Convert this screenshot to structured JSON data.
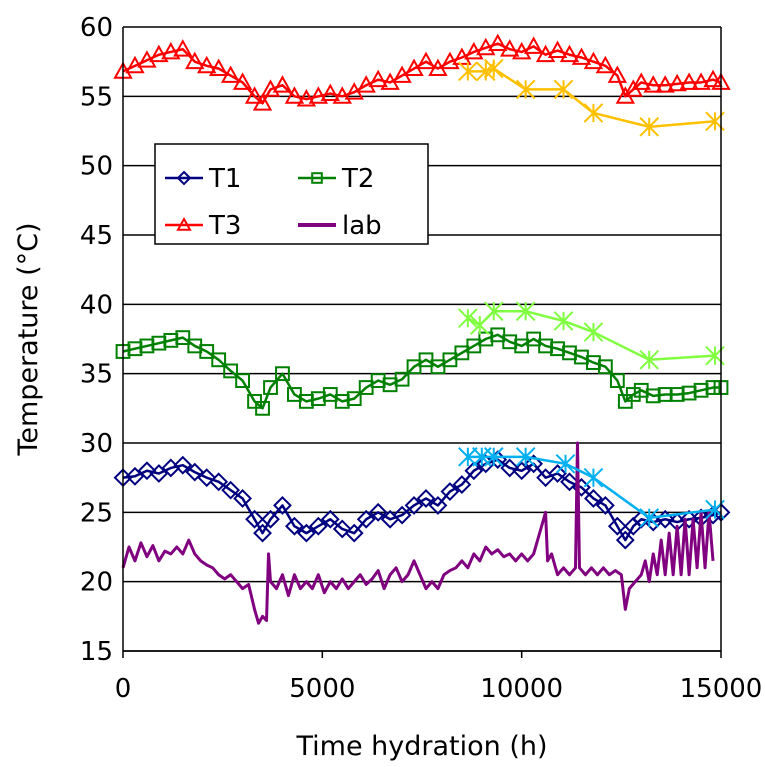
{
  "chart_data": {
    "type": "line",
    "title": "",
    "xlabel": "Time hydration (h)",
    "ylabel": "Temperature  (°C)",
    "xlim": [
      0,
      15000
    ],
    "ylim": [
      15,
      60
    ],
    "x_ticks": [
      0,
      5000,
      10000,
      15000
    ],
    "x_tick_labels": [
      "0",
      "5000",
      "10000",
      "15000"
    ],
    "y_ticks": [
      15,
      20,
      25,
      30,
      35,
      40,
      45,
      50,
      55,
      60
    ],
    "y_tick_labels": [
      "15",
      "20",
      "25",
      "30",
      "35",
      "40",
      "45",
      "50",
      "55",
      "60"
    ],
    "grid": "horizontal",
    "legend_position": "upper-left inside plot",
    "series": [
      {
        "name": "T1",
        "color": "#000080",
        "marker": "diamond",
        "x": [
          0,
          300,
          600,
          900,
          1200,
          1500,
          1800,
          2100,
          2400,
          2700,
          3000,
          3300,
          3500,
          3700,
          4000,
          4300,
          4600,
          4900,
          5200,
          5500,
          5800,
          6100,
          6400,
          6700,
          7000,
          7300,
          7600,
          7900,
          8200,
          8500,
          8800,
          9100,
          9400,
          9700,
          10000,
          10300,
          10600,
          10900,
          11200,
          11500,
          11800,
          12100,
          12400,
          12600,
          12800,
          13000,
          13300,
          13600,
          13900,
          14200,
          14500,
          14800,
          15000
        ],
        "y": [
          27.5,
          27.6,
          28.0,
          27.8,
          28.2,
          28.4,
          27.9,
          27.5,
          27.2,
          26.6,
          26.0,
          24.5,
          23.5,
          24.5,
          25.5,
          24.0,
          23.5,
          24.0,
          24.5,
          23.8,
          23.5,
          24.5,
          25.0,
          24.5,
          24.8,
          25.5,
          26.0,
          25.5,
          26.5,
          27.0,
          28.0,
          28.5,
          28.8,
          28.2,
          28.0,
          28.5,
          27.5,
          27.8,
          27.2,
          26.8,
          26.0,
          25.5,
          24.0,
          23.0,
          24.0,
          24.5,
          24.3,
          24.5,
          24.3,
          24.5,
          24.6,
          24.8,
          25.0
        ]
      },
      {
        "name": "T2",
        "color": "#008000",
        "marker": "square",
        "x": [
          0,
          300,
          600,
          900,
          1200,
          1500,
          1800,
          2100,
          2400,
          2700,
          3000,
          3300,
          3500,
          3700,
          4000,
          4300,
          4600,
          4900,
          5200,
          5500,
          5800,
          6100,
          6400,
          6700,
          7000,
          7300,
          7600,
          7900,
          8200,
          8500,
          8800,
          9100,
          9400,
          9700,
          10000,
          10300,
          10600,
          10900,
          11200,
          11500,
          11800,
          12100,
          12400,
          12600,
          12800,
          13000,
          13300,
          13600,
          13900,
          14200,
          14500,
          14800,
          15000
        ],
        "y": [
          36.6,
          36.8,
          37.0,
          37.2,
          37.4,
          37.6,
          37.0,
          36.6,
          36.0,
          35.2,
          34.5,
          33.0,
          32.5,
          34.0,
          35.0,
          33.5,
          33.0,
          33.2,
          33.5,
          33.0,
          33.2,
          34.0,
          34.5,
          34.2,
          34.6,
          35.5,
          36.0,
          35.5,
          36.0,
          36.5,
          37.0,
          37.5,
          37.8,
          37.3,
          37.0,
          37.5,
          37.0,
          36.8,
          36.5,
          36.2,
          35.8,
          35.5,
          34.5,
          33.0,
          33.5,
          33.8,
          33.4,
          33.5,
          33.5,
          33.6,
          33.8,
          34.0,
          34.0
        ]
      },
      {
        "name": "T3",
        "color": "#ff0000",
        "marker": "triangle",
        "x": [
          0,
          300,
          600,
          900,
          1200,
          1500,
          1800,
          2100,
          2400,
          2700,
          3000,
          3300,
          3500,
          3700,
          4000,
          4300,
          4600,
          4900,
          5200,
          5500,
          5800,
          6100,
          6400,
          6700,
          7000,
          7300,
          7600,
          7900,
          8200,
          8500,
          8800,
          9100,
          9400,
          9700,
          10000,
          10300,
          10600,
          10900,
          11200,
          11500,
          11800,
          12100,
          12400,
          12600,
          12800,
          13000,
          13300,
          13600,
          13900,
          14200,
          14500,
          14800,
          15000
        ],
        "y": [
          56.8,
          57.2,
          57.6,
          58.0,
          58.2,
          58.4,
          57.5,
          57.2,
          57.0,
          56.5,
          56.0,
          55.0,
          54.5,
          55.5,
          55.8,
          55.0,
          54.8,
          55.0,
          55.2,
          55.0,
          55.3,
          55.8,
          56.2,
          56.0,
          56.5,
          57.0,
          57.5,
          57.0,
          57.5,
          57.8,
          58.2,
          58.5,
          58.8,
          58.4,
          58.2,
          58.6,
          58.0,
          58.3,
          58.0,
          57.8,
          57.5,
          57.2,
          56.5,
          55.0,
          55.5,
          56.0,
          55.8,
          55.8,
          55.9,
          56.0,
          56.0,
          56.2,
          56.0
        ]
      },
      {
        "name": "lab",
        "color": "#800080",
        "marker": "none",
        "x": [
          0,
          150,
          300,
          450,
          600,
          750,
          900,
          1050,
          1200,
          1350,
          1500,
          1650,
          1800,
          1950,
          2100,
          2250,
          2400,
          2550,
          2700,
          2850,
          3000,
          3150,
          3300,
          3400,
          3500,
          3600,
          3650,
          3700,
          3850,
          4000,
          4150,
          4300,
          4450,
          4600,
          4750,
          4900,
          5050,
          5200,
          5350,
          5500,
          5650,
          5800,
          5950,
          6100,
          6250,
          6400,
          6550,
          6700,
          6850,
          7000,
          7150,
          7300,
          7450,
          7600,
          7750,
          7900,
          8050,
          8200,
          8350,
          8500,
          8650,
          8800,
          8950,
          9100,
          9250,
          9400,
          9550,
          9700,
          9850,
          10000,
          10150,
          10300,
          10450,
          10600,
          10650,
          10750,
          10900,
          11050,
          11200,
          11350,
          11400,
          11450,
          11600,
          11750,
          11900,
          12050,
          12200,
          12350,
          12500,
          12600,
          12700,
          12850,
          13000,
          13100,
          13200,
          13300,
          13400,
          13500,
          13600,
          13700,
          13800,
          13900,
          14000,
          14100,
          14200,
          14300,
          14400,
          14500,
          14600,
          14700,
          14800
        ],
        "y": [
          21.0,
          22.5,
          21.5,
          22.8,
          21.8,
          22.6,
          21.5,
          22.2,
          22.0,
          22.5,
          22.0,
          23.0,
          22.0,
          21.5,
          21.2,
          21.0,
          20.5,
          20.2,
          20.5,
          20.0,
          19.5,
          19.8,
          18.0,
          17.0,
          17.5,
          17.2,
          22.0,
          20.0,
          19.5,
          20.5,
          19.0,
          20.5,
          19.5,
          20.0,
          19.5,
          20.5,
          19.2,
          20.0,
          19.5,
          20.2,
          19.5,
          20.0,
          20.5,
          19.8,
          20.2,
          20.8,
          19.5,
          20.5,
          21.0,
          20.0,
          20.5,
          21.5,
          20.5,
          19.5,
          20.0,
          19.5,
          20.5,
          20.8,
          21.0,
          21.5,
          21.0,
          22.0,
          21.5,
          22.5,
          22.0,
          22.3,
          21.8,
          22.0,
          21.5,
          22.0,
          21.5,
          22.0,
          23.5,
          25.0,
          21.5,
          22.0,
          20.5,
          21.0,
          20.5,
          21.0,
          30.0,
          21.0,
          20.5,
          21.0,
          20.5,
          21.0,
          20.5,
          20.8,
          20.5,
          18.0,
          19.5,
          20.0,
          20.5,
          21.5,
          20.0,
          22.0,
          20.5,
          23.0,
          20.5,
          23.5,
          20.5,
          24.0,
          20.5,
          24.5,
          20.5,
          24.5,
          21.0,
          25.0,
          21.0,
          25.0,
          21.5
        ]
      },
      {
        "name": "",
        "color": "#ffc000",
        "marker": "star",
        "x": [
          8650,
          9100,
          9300,
          10100,
          11050,
          11800,
          13200,
          14850
        ],
        "y": [
          56.8,
          56.8,
          57.0,
          55.5,
          55.5,
          53.8,
          52.8,
          53.2
        ]
      },
      {
        "name": "",
        "color": "#80ff40",
        "marker": "star",
        "x": [
          8650,
          8950,
          9300,
          10100,
          11050,
          11800,
          13200,
          14850
        ],
        "y": [
          39.0,
          38.5,
          39.5,
          39.5,
          38.8,
          38.0,
          36.0,
          36.3
        ]
      },
      {
        "name": "",
        "color": "#00b0f0",
        "marker": "star",
        "x": [
          8650,
          9000,
          9300,
          10100,
          11100,
          11800,
          13200,
          14850
        ],
        "y": [
          29.0,
          29.0,
          29.0,
          29.0,
          28.5,
          27.5,
          24.6,
          25.2
        ]
      }
    ]
  }
}
